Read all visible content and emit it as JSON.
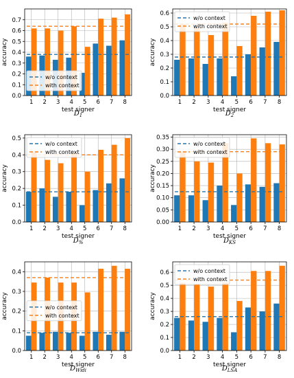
{
  "chart_data": [
    {
      "type": "bar",
      "caption": "D1",
      "caption_base": "D",
      "caption_sub": "1",
      "xlabel": "test signer",
      "ylabel": "accuracy",
      "categories": [
        "1",
        "2",
        "3",
        "4",
        "5",
        "6",
        "7",
        "8"
      ],
      "ylim": [
        0,
        0.8
      ],
      "yticks": [
        0.0,
        0.1,
        0.2,
        0.3,
        0.4,
        0.5,
        0.6,
        0.7
      ],
      "ytick_decimals": 1,
      "grid": true,
      "legend": "lower-left",
      "series": [
        {
          "name": "w/o context",
          "color": "#1f77b4",
          "values": [
            0.36,
            0.37,
            0.33,
            0.35,
            0.21,
            0.48,
            0.46,
            0.51
          ],
          "mean": 0.38
        },
        {
          "name": "with context",
          "color": "#ff7f0e",
          "values": [
            0.62,
            0.62,
            0.6,
            0.64,
            0.45,
            0.71,
            0.72,
            0.75
          ],
          "mean": 0.64
        }
      ]
    },
    {
      "type": "bar",
      "caption": "D2",
      "caption_base": "D",
      "caption_sub": "2",
      "xlabel": "test signer",
      "ylabel": "accuracy",
      "categories": [
        "1",
        "2",
        "3",
        "4",
        "5",
        "6",
        "7",
        "8"
      ],
      "ylim": [
        0,
        0.63
      ],
      "yticks": [
        0.0,
        0.1,
        0.2,
        0.3,
        0.4,
        0.5,
        0.6
      ],
      "ytick_decimals": 1,
      "grid": true,
      "legend": "upper-left",
      "series": [
        {
          "name": "w/o context",
          "color": "#1f77b4",
          "values": [
            0.26,
            0.27,
            0.23,
            0.27,
            0.14,
            0.3,
            0.35,
            0.39
          ],
          "mean": 0.28
        },
        {
          "name": "with context",
          "color": "#ff7f0e",
          "values": [
            0.52,
            0.49,
            0.44,
            0.53,
            0.36,
            0.58,
            0.61,
            0.62
          ],
          "mean": 0.52
        }
      ]
    },
    {
      "type": "bar",
      "caption": "D%",
      "caption_base": "D",
      "caption_sub": "%",
      "xlabel": "test signer",
      "ylabel": "accuracy",
      "categories": [
        "1",
        "2",
        "3",
        "4",
        "5",
        "6",
        "7",
        "8"
      ],
      "ylim": [
        0,
        0.52
      ],
      "yticks": [
        0.0,
        0.1,
        0.2,
        0.3,
        0.4,
        0.5
      ],
      "ytick_decimals": 1,
      "grid": true,
      "legend": "upper-left",
      "series": [
        {
          "name": "w/o context",
          "color": "#1f77b4",
          "values": [
            0.18,
            0.2,
            0.15,
            0.18,
            0.1,
            0.19,
            0.23,
            0.26
          ],
          "mean": 0.18
        },
        {
          "name": "with context",
          "color": "#ff7f0e",
          "values": [
            0.42,
            0.37,
            0.35,
            0.41,
            0.3,
            0.43,
            0.46,
            0.5
          ],
          "mean": 0.4
        }
      ]
    },
    {
      "type": "bar",
      "caption": "DKS",
      "caption_base": "D",
      "caption_sub": "KS",
      "xlabel": "test signer",
      "ylabel": "accuracy",
      "categories": [
        "1",
        "2",
        "3",
        "4",
        "5",
        "6",
        "7",
        "8"
      ],
      "ylim": [
        0,
        0.36
      ],
      "yticks": [
        0.0,
        0.05,
        0.1,
        0.15,
        0.2,
        0.25,
        0.3,
        0.35
      ],
      "ytick_decimals": 2,
      "grid": true,
      "legend": "upper-left",
      "series": [
        {
          "name": "w/o context",
          "color": "#1f77b4",
          "values": [
            0.11,
            0.11,
            0.09,
            0.15,
            0.07,
            0.155,
            0.145,
            0.16
          ],
          "mean": 0.125
        },
        {
          "name": "with context",
          "color": "#ff7f0e",
          "values": [
            0.29,
            0.25,
            0.245,
            0.325,
            0.2,
            0.345,
            0.325,
            0.32
          ],
          "mean": 0.29
        }
      ]
    },
    {
      "type": "bar",
      "caption": "DWidi",
      "caption_base": "D",
      "caption_sub": "Widi",
      "xlabel": "test signer",
      "ylabel": "accuracy",
      "categories": [
        "1",
        "2",
        "3",
        "4",
        "5",
        "6",
        "7",
        "8"
      ],
      "ylim": [
        0,
        0.45
      ],
      "yticks": [
        0.0,
        0.1,
        0.2,
        0.3,
        0.4
      ],
      "ytick_decimals": 1,
      "grid": true,
      "legend": "center-left",
      "series": [
        {
          "name": "w/o context",
          "color": "#1f77b4",
          "values": [
            0.075,
            0.09,
            0.095,
            0.09,
            0.075,
            0.095,
            0.08,
            0.095
          ],
          "mean": 0.09
        },
        {
          "name": "with context",
          "color": "#ff7f0e",
          "values": [
            0.345,
            0.37,
            0.345,
            0.345,
            0.295,
            0.415,
            0.43,
            0.415
          ],
          "mean": 0.37
        }
      ]
    },
    {
      "type": "bar",
      "caption": "DLSA",
      "caption_base": "D",
      "caption_sub": "LSA",
      "xlabel": "test signer",
      "ylabel": "accuracy",
      "categories": [
        "1",
        "2",
        "3",
        "4",
        "5",
        "6",
        "7",
        "8"
      ],
      "ylim": [
        0,
        0.68
      ],
      "yticks": [
        0.0,
        0.1,
        0.2,
        0.3,
        0.4,
        0.5,
        0.6
      ],
      "ytick_decimals": 1,
      "grid": true,
      "legend": "upper-left",
      "series": [
        {
          "name": "w/o context",
          "color": "#1f77b4",
          "values": [
            0.25,
            0.23,
            0.22,
            0.25,
            0.14,
            0.33,
            0.3,
            0.36
          ],
          "mean": 0.26
        },
        {
          "name": "with context",
          "color": "#ff7f0e",
          "values": [
            0.52,
            0.51,
            0.49,
            0.52,
            0.38,
            0.61,
            0.61,
            0.65
          ],
          "mean": 0.54
        }
      ]
    }
  ]
}
